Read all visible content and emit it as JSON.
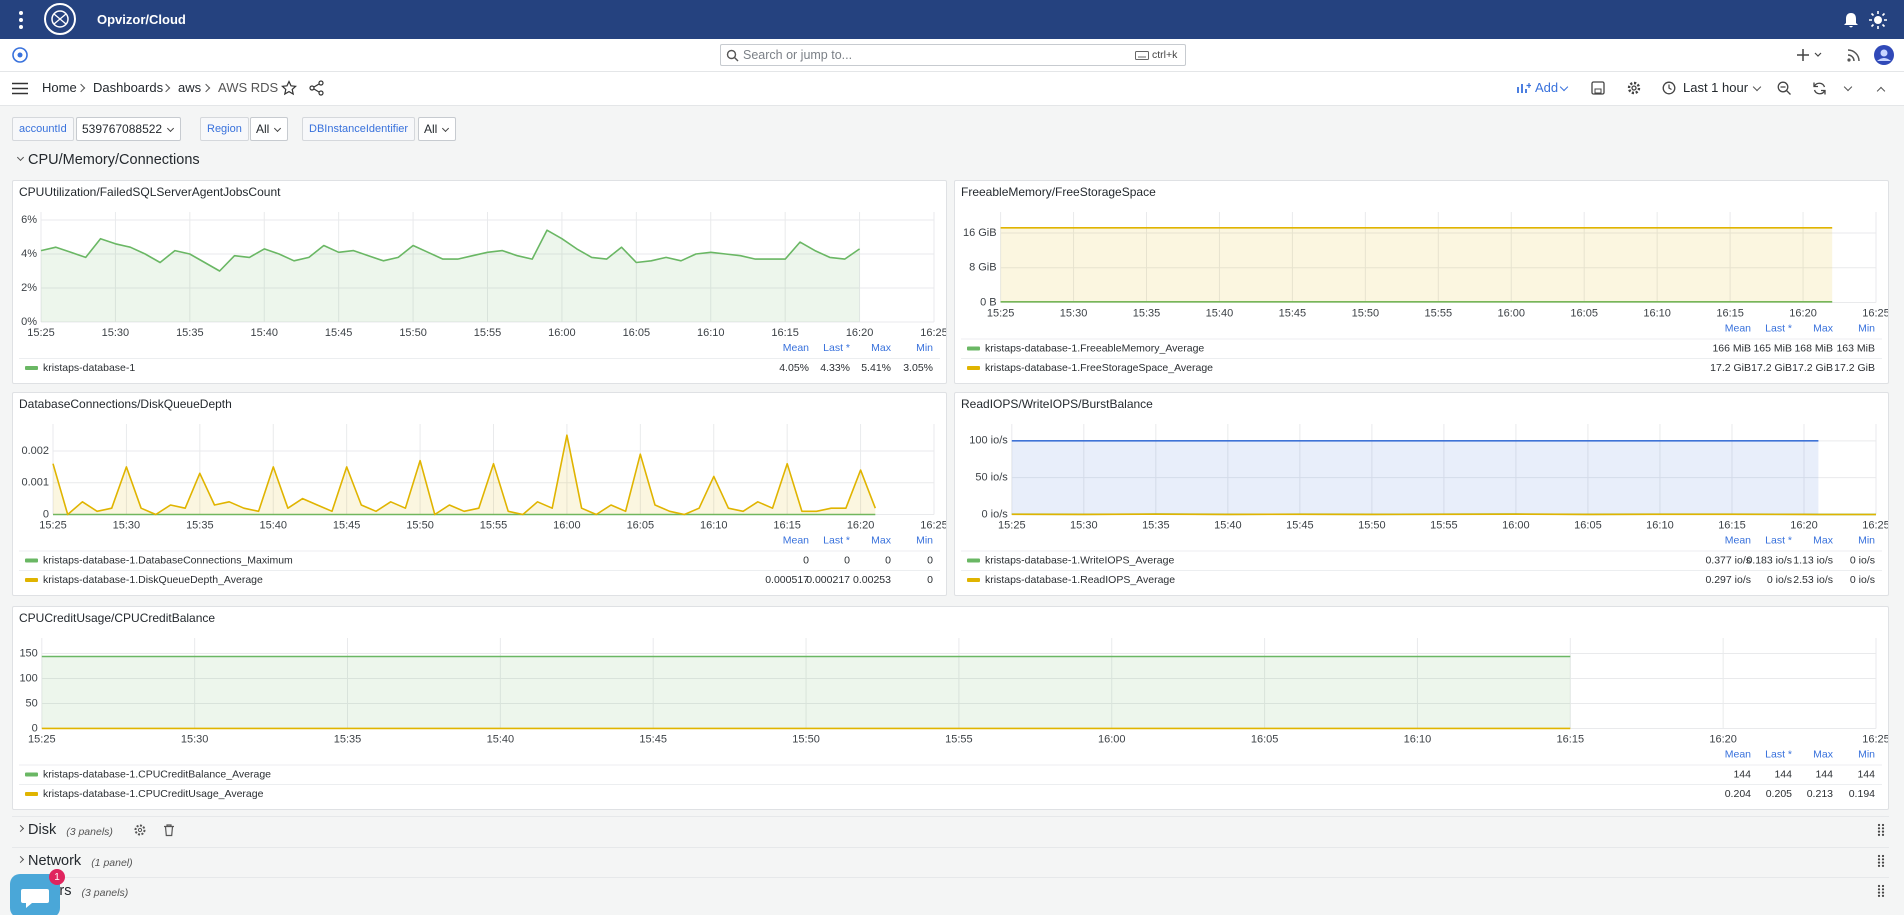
{
  "header": {
    "brand": "Opvizor/Cloud"
  },
  "search": {
    "placeholder": "Search or jump to...",
    "shortcut": "ctrl+k"
  },
  "breadcrumbs": [
    "Home",
    "Dashboards",
    "aws",
    "AWS RDS"
  ],
  "toolbar": {
    "add": "Add",
    "time_range": "Last 1 hour"
  },
  "variables": [
    {
      "label": "accountId",
      "value": "539767088522"
    },
    {
      "label": "Region",
      "value": "All"
    },
    {
      "label": "DBInstanceIdentifier",
      "value": "All"
    }
  ],
  "row": {
    "title": "CPU/Memory/Connections"
  },
  "panels": [
    {
      "chart_data": {
        "type": "line",
        "title": "CPUUtilization/FailedSQLServerAgentJobsCount",
        "x": [
          925,
          926,
          927,
          928,
          929,
          930,
          931,
          932,
          933,
          934,
          935,
          936,
          937,
          938,
          939,
          940,
          941,
          942,
          943,
          944,
          945,
          946,
          947,
          948,
          949,
          950,
          951,
          952,
          953,
          954,
          955,
          956,
          957,
          958,
          959,
          960,
          961,
          962,
          963,
          964,
          965,
          966,
          967,
          968,
          969,
          970,
          971,
          972,
          973,
          974,
          975,
          976,
          977,
          978,
          979,
          980
        ],
        "xlim": [
          925,
          985
        ],
        "xticks": [
          {
            "value": 925,
            "label": "15:25"
          },
          {
            "value": 930,
            "label": "15:30"
          },
          {
            "value": 935,
            "label": "15:35"
          },
          {
            "value": 940,
            "label": "15:40"
          },
          {
            "value": 945,
            "label": "15:45"
          },
          {
            "value": 950,
            "label": "15:50"
          },
          {
            "value": 955,
            "label": "15:55"
          },
          {
            "value": 960,
            "label": "16:00"
          },
          {
            "value": 965,
            "label": "16:05"
          },
          {
            "value": 970,
            "label": "16:10"
          },
          {
            "value": 975,
            "label": "16:15"
          },
          {
            "value": 980,
            "label": "16:20"
          },
          {
            "value": 985,
            "label": "16:25"
          }
        ],
        "ylim": [
          0,
          6
        ],
        "yticks": [
          {
            "value": 0,
            "label": "0%"
          },
          {
            "value": 2,
            "label": "2%"
          },
          {
            "value": 4,
            "label": "4%"
          },
          {
            "value": 6,
            "label": "6%"
          }
        ],
        "legend_columns": [
          "Mean",
          "Last *",
          "Max",
          "Min"
        ],
        "series": [
          {
            "name": "kristaps-database-1",
            "color": "#6ab764",
            "values": [
              4.2,
              4.4,
              4.1,
              3.8,
              4.9,
              4.6,
              4.4,
              4.0,
              3.5,
              4.2,
              4.0,
              3.5,
              3.0,
              3.9,
              3.8,
              4.3,
              4.0,
              3.6,
              3.8,
              4.5,
              4.1,
              4.2,
              3.9,
              3.6,
              3.8,
              4.5,
              4.1,
              3.7,
              3.7,
              3.9,
              4.1,
              4.2,
              3.9,
              3.7,
              5.4,
              4.9,
              4.3,
              3.8,
              3.7,
              4.4,
              3.5,
              3.6,
              3.8,
              3.6,
              4.0,
              4.1,
              4.0,
              3.9,
              3.7,
              3.7,
              3.7,
              4.7,
              4.2,
              3.8,
              3.7,
              4.3
            ],
            "stats": [
              "4.05%",
              "4.33%",
              "5.41%",
              "3.05%"
            ]
          }
        ]
      }
    },
    {
      "chart_data": {
        "type": "line",
        "title": "FreeableMemory/FreeStorageSpace",
        "x": [
          925,
          930,
          935,
          940,
          945,
          950,
          955,
          960,
          965,
          970,
          975,
          980,
          982
        ],
        "xlim": [
          925,
          985
        ],
        "xticks": [
          {
            "value": 925,
            "label": "15:25"
          },
          {
            "value": 930,
            "label": "15:30"
          },
          {
            "value": 935,
            "label": "15:35"
          },
          {
            "value": 940,
            "label": "15:40"
          },
          {
            "value": 945,
            "label": "15:45"
          },
          {
            "value": 950,
            "label": "15:50"
          },
          {
            "value": 955,
            "label": "15:55"
          },
          {
            "value": 960,
            "label": "16:00"
          },
          {
            "value": 965,
            "label": "16:05"
          },
          {
            "value": 970,
            "label": "16:10"
          },
          {
            "value": 975,
            "label": "16:15"
          },
          {
            "value": 980,
            "label": "16:20"
          },
          {
            "value": 985,
            "label": "16:25"
          }
        ],
        "ylim": [
          0,
          19
        ],
        "yticks": [
          {
            "value": 0,
            "label": "0 B"
          },
          {
            "value": 8,
            "label": "8 GiB"
          },
          {
            "value": 16,
            "label": "16 GiB"
          }
        ],
        "legend_columns": [
          "Mean",
          "Last *",
          "Max",
          "Min"
        ],
        "series": [
          {
            "name": "kristaps-database-1.FreeableMemory_Average",
            "color": "#6ab764",
            "values": [
              0.162,
              0.162,
              0.162,
              0.162,
              0.162,
              0.162,
              0.162,
              0.162,
              0.162,
              0.162,
              0.162,
              0.162,
              0.162
            ],
            "stats": [
              "166 MiB",
              "165 MiB",
              "168 MiB",
              "163 MiB"
            ]
          },
          {
            "name": "kristaps-database-1.FreeStorageSpace_Average",
            "color": "#e0b400",
            "values": [
              17.2,
              17.2,
              17.2,
              17.2,
              17.2,
              17.2,
              17.2,
              17.2,
              17.2,
              17.2,
              17.2,
              17.2,
              17.2
            ],
            "stats": [
              "17.2 GiB",
              "17.2 GiB",
              "17.2 GiB",
              "17.2 GiB"
            ]
          }
        ]
      }
    },
    {
      "chart_data": {
        "type": "line",
        "title": "DatabaseConnections/DiskQueueDepth",
        "x": [
          925,
          926,
          927,
          928,
          929,
          930,
          931,
          932,
          933,
          934,
          935,
          936,
          937,
          938,
          939,
          940,
          941,
          942,
          943,
          944,
          945,
          946,
          947,
          948,
          949,
          950,
          951,
          952,
          953,
          954,
          955,
          956,
          957,
          958,
          959,
          960,
          961,
          962,
          963,
          964,
          965,
          966,
          967,
          968,
          969,
          970,
          971,
          972,
          973,
          974,
          975,
          976,
          977,
          978,
          979,
          980,
          981
        ],
        "xlim": [
          925,
          985
        ],
        "xticks": [
          {
            "value": 925,
            "label": "15:25"
          },
          {
            "value": 930,
            "label": "15:30"
          },
          {
            "value": 935,
            "label": "15:35"
          },
          {
            "value": 940,
            "label": "15:40"
          },
          {
            "value": 945,
            "label": "15:45"
          },
          {
            "value": 950,
            "label": "15:50"
          },
          {
            "value": 955,
            "label": "15:55"
          },
          {
            "value": 960,
            "label": "16:00"
          },
          {
            "value": 965,
            "label": "16:05"
          },
          {
            "value": 970,
            "label": "16:10"
          },
          {
            "value": 975,
            "label": "16:15"
          },
          {
            "value": 980,
            "label": "16:20"
          },
          {
            "value": 985,
            "label": "16:25"
          }
        ],
        "ylim": [
          0,
          0.0026
        ],
        "yticks": [
          0,
          0.001,
          0.002
        ],
        "legend_columns": [
          "Mean",
          "Last *",
          "Max",
          "Min"
        ],
        "series": [
          {
            "name": "kristaps-database-1.DatabaseConnections_Maximum",
            "color": "#6ab764",
            "values": [
              0,
              0,
              0,
              0,
              0,
              0,
              0,
              0,
              0,
              0,
              0,
              0,
              0,
              0,
              0,
              0,
              0,
              0,
              0,
              0,
              0,
              0,
              0,
              0,
              0,
              0,
              0,
              0,
              0,
              0,
              0,
              0,
              0,
              0,
              0,
              0,
              0,
              0,
              0,
              0,
              0,
              0,
              0,
              0,
              0,
              0,
              0,
              0,
              0,
              0,
              0,
              0,
              0,
              0,
              0,
              0,
              0
            ],
            "stats": [
              "0",
              "0",
              "0",
              "0"
            ]
          },
          {
            "name": "kristaps-database-1.DiskQueueDepth_Average",
            "color": "#e0b400",
            "values": [
              0.0016,
              0,
              0.0004,
              0.0001,
              0.0002,
              0.0015,
              0.0002,
              0,
              0.0003,
              0.0002,
              0.0013,
              0.0003,
              0.0004,
              0.0002,
              0.0001,
              0.0015,
              0.0002,
              0.0005,
              0.0003,
              0.0001,
              0.0015,
              0.0003,
              0.0001,
              0.0004,
              0.0002,
              0.0017,
              0,
              0.0003,
              0.0001,
              0.0002,
              0.0016,
              0.0001,
              0,
              0.0004,
              0.0002,
              0.0025,
              0.0002,
              0,
              0.0003,
              0.0001,
              0.0019,
              0.0003,
              0.0001,
              0,
              0.0002,
              0.0012,
              0.0002,
              0.0001,
              0.0004,
              0.0002,
              0.0016,
              0.0001,
              0.0001,
              0.0002,
              0.0002,
              0.0014,
              0.0002
            ],
            "stats": [
              "0.000517",
              "0.000217",
              "0.00253",
              "0"
            ]
          }
        ]
      }
    },
    {
      "chart_data": {
        "type": "line",
        "title": "ReadIOPS/WriteIOPS/BurstBalance",
        "x": [
          925,
          930,
          935,
          940,
          945,
          950,
          955,
          960,
          965,
          970,
          975,
          980,
          981,
          985
        ],
        "xlim": [
          925,
          985
        ],
        "xticks": [
          {
            "value": 925,
            "label": "15:25"
          },
          {
            "value": 930,
            "label": "15:30"
          },
          {
            "value": 935,
            "label": "15:35"
          },
          {
            "value": 940,
            "label": "15:40"
          },
          {
            "value": 945,
            "label": "15:45"
          },
          {
            "value": 950,
            "label": "15:50"
          },
          {
            "value": 955,
            "label": "15:55"
          },
          {
            "value": 960,
            "label": "16:00"
          },
          {
            "value": 965,
            "label": "16:05"
          },
          {
            "value": 970,
            "label": "16:10"
          },
          {
            "value": 975,
            "label": "16:15"
          },
          {
            "value": 980,
            "label": "16:20"
          },
          {
            "value": 985,
            "label": "16:25"
          }
        ],
        "ylim": [
          0,
          112
        ],
        "yticks": [
          {
            "value": 0,
            "label": "0 io/s"
          },
          {
            "value": 50,
            "label": "50 io/s"
          },
          {
            "value": 100,
            "label": "100 io/s"
          }
        ],
        "legend_columns": [
          "Mean",
          "Last *",
          "Max",
          "Min"
        ],
        "series": [
          {
            "color": "#3f73d6",
            "values": [
              100,
              100,
              100,
              100,
              100,
              100,
              100,
              100,
              100,
              100,
              100,
              100,
              100,
              null
            ]
          },
          {
            "name": "kristaps-database-1.WriteIOPS_Average",
            "color": "#6ab764",
            "values": [
              0.4,
              0.3,
              0.5,
              0.3,
              0.4,
              0.3,
              0.4,
              0.5,
              0.3,
              0.4,
              0.4,
              0.3,
              0.2,
              0.2
            ],
            "stats": [
              "0.377 io/s",
              "0.183 io/s",
              "1.13 io/s",
              "0 io/s"
            ]
          },
          {
            "name": "kristaps-database-1.ReadIOPS_Average",
            "color": "#e0b400",
            "values": [
              0.3,
              0.2,
              0.4,
              0.2,
              0.3,
              0.2,
              0.3,
              0.4,
              0.2,
              0.3,
              0.3,
              0.2,
              0,
              0
            ],
            "stats": [
              "0.297 io/s",
              "0 io/s",
              "2.53 io/s",
              "0 io/s"
            ]
          }
        ]
      }
    },
    {
      "chart_data": {
        "type": "line",
        "title": "CPUCreditUsage/CPUCreditBalance",
        "x": [
          925,
          930,
          935,
          940,
          945,
          950,
          955,
          960,
          965,
          970,
          975
        ],
        "xlim": [
          925,
          985
        ],
        "xticks": [
          {
            "value": 925,
            "label": "15:25"
          },
          {
            "value": 930,
            "label": "15:30"
          },
          {
            "value": 935,
            "label": "15:35"
          },
          {
            "value": 940,
            "label": "15:40"
          },
          {
            "value": 945,
            "label": "15:45"
          },
          {
            "value": 950,
            "label": "15:50"
          },
          {
            "value": 955,
            "label": "15:55"
          },
          {
            "value": 960,
            "label": "16:00"
          },
          {
            "value": 965,
            "label": "16:05"
          },
          {
            "value": 970,
            "label": "16:10"
          },
          {
            "value": 975,
            "label": "16:15"
          },
          {
            "value": 980,
            "label": "16:20"
          },
          {
            "value": 985,
            "label": "16:25"
          }
        ],
        "ylim": [
          0,
          165
        ],
        "yticks": [
          0,
          50,
          100,
          150
        ],
        "legend_columns": [
          "Mean",
          "Last *",
          "Max",
          "Min"
        ],
        "series": [
          {
            "name": "kristaps-database-1.CPUCreditBalance_Average",
            "color": "#6ab764",
            "values": [
              144,
              144,
              144,
              144,
              144,
              144,
              144,
              144,
              144,
              144,
              144
            ],
            "stats": [
              "144",
              "144",
              "144",
              "144"
            ]
          },
          {
            "name": "kristaps-database-1.CPUCreditUsage_Average",
            "color": "#e0b400",
            "values": [
              0.2,
              0.21,
              0.2,
              0.19,
              0.2,
              0.21,
              0.2,
              0.2,
              0.21,
              0.2,
              0.2
            ],
            "stats": [
              "0.204",
              "0.205",
              "0.213",
              "0.194"
            ]
          }
        ]
      }
    }
  ],
  "collapsed_rows": [
    {
      "title": "Disk",
      "count": "(3 panels)"
    },
    {
      "title": "Network",
      "count": "(1 panel)"
    },
    {
      "title": "Others",
      "count": "(3 panels)"
    }
  ],
  "chat": {
    "badge": "1"
  }
}
